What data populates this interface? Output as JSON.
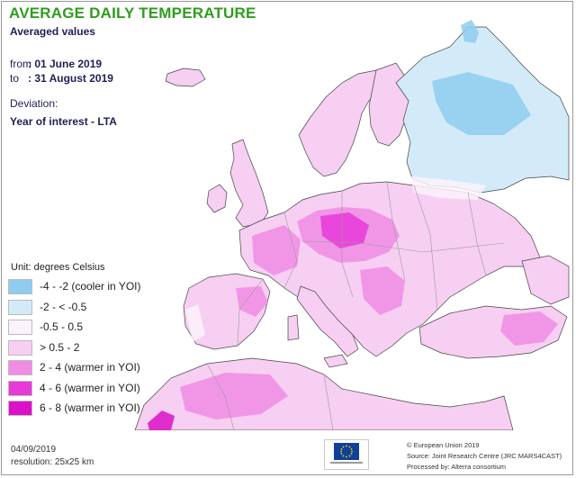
{
  "header": {
    "title": "AVERAGE DAILY TEMPERATURE",
    "subtitle": "Averaged values"
  },
  "period": {
    "from_label": "from",
    "from_value": ": 01 June 2019",
    "to_label": "to",
    "to_value": ": 31 August 2019"
  },
  "deviation": {
    "label": "Deviation:",
    "value": "Year of interest - LTA"
  },
  "legend": {
    "unit": "Unit: degrees Celsius",
    "classes": [
      {
        "label": "-4 - -2 (cooler in YOI)",
        "color": "#8ecdf0"
      },
      {
        "label": "-2 - < -0.5",
        "color": "#d3ebf8"
      },
      {
        "label": "-0.5 - 0.5",
        "color": "#fbf3fb"
      },
      {
        "label": "> 0.5 - 2",
        "color": "#f7cff2"
      },
      {
        "label": "2 - 4 (warmer in YOI)",
        "color": "#f08ce4"
      },
      {
        "label": "4 - 6 (warmer in YOI)",
        "color": "#e83ad8"
      },
      {
        "label": "6 - 8 (warmer in YOI)",
        "color": "#dc10c8"
      }
    ]
  },
  "map_colors": {
    "background": "#ffffff",
    "border_line": "#9a9a9a",
    "coast_line": "#444444"
  },
  "footer": {
    "date": "04/09/2019",
    "resolution": "resolution: 25x25 km",
    "copyright": "© European Union 2019",
    "source": "Source: Joint Research Centre (JRC MARS4CAST)",
    "processed": "Processed by: Alterra consortium"
  }
}
